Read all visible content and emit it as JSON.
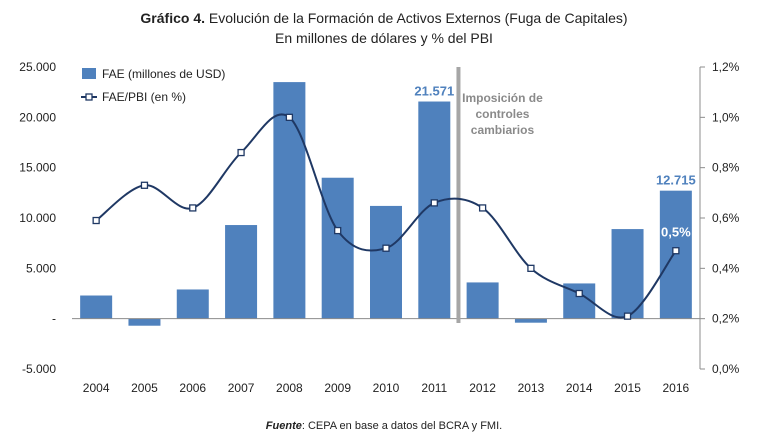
{
  "title_lead": "Gráfico 4.",
  "title_rest": " Evolución de la Formación de Activos Externos (Fuga de Capitales)",
  "subtitle": "En millones de dólares y % del PBI",
  "source_label": "Fuente",
  "source_text": ": CEPA en base a datos del BCRA y FMI.",
  "colors": {
    "bar": "#4f81bd",
    "line": "#1f3864",
    "divider": "#a6a6a6",
    "label": "#4f81bd",
    "annotation": "#8a8a8a"
  },
  "chart_data": {
    "type": "bar",
    "categories": [
      "2004",
      "2005",
      "2006",
      "2007",
      "2008",
      "2009",
      "2010",
      "2011",
      "2012",
      "2013",
      "2014",
      "2015",
      "2016"
    ],
    "series": [
      {
        "name": "FAE (millones de USD)",
        "type": "bar",
        "axis": "left",
        "values": [
          2300,
          -700,
          2900,
          9300,
          23500,
          14000,
          11200,
          21571,
          3600,
          -400,
          3500,
          8900,
          12715
        ]
      },
      {
        "name": "FAE/PBI (en %)",
        "type": "line",
        "axis": "right",
        "values": [
          0.59,
          0.73,
          0.64,
          0.86,
          1.0,
          0.55,
          0.48,
          0.66,
          0.64,
          0.4,
          0.3,
          0.21,
          0.47
        ]
      }
    ],
    "left_axis": {
      "ylim": [
        -5000,
        25000
      ],
      "ticks": [
        -5000,
        0,
        5000,
        10000,
        15000,
        20000,
        25000
      ],
      "tick_labels": [
        "-5.000",
        "-",
        "5.000",
        "10.000",
        "15.000",
        "20.000",
        "25.000"
      ]
    },
    "right_axis": {
      "ylim": [
        0.0,
        1.2
      ],
      "ticks": [
        0.0,
        0.2,
        0.4,
        0.6,
        0.8,
        1.0,
        1.2
      ],
      "tick_labels": [
        "0,0%",
        "0,2%",
        "0,4%",
        "0,6%",
        "0,8%",
        "1,0%",
        "1,2%"
      ]
    },
    "data_labels": [
      {
        "category": "2011",
        "series": "FAE (millones de USD)",
        "text": "21.571"
      },
      {
        "category": "2016",
        "series": "FAE (millones de USD)",
        "text": "12.715"
      },
      {
        "category": "2016",
        "series": "FAE/PBI (en %)",
        "text": "0,5%"
      }
    ],
    "annotation": {
      "lines": [
        "Imposición de",
        "controles",
        "cambiarios"
      ],
      "between": [
        "2011",
        "2012"
      ]
    },
    "legend": {
      "position": "top-left"
    },
    "grid": false
  }
}
